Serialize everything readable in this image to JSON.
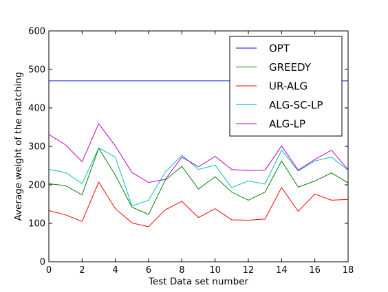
{
  "chart_data": {
    "type": "line",
    "title": "",
    "xlabel": "Test Data set number",
    "ylabel": "Average weight of the matching",
    "xlim": [
      0,
      18
    ],
    "ylim": [
      0,
      600
    ],
    "xticks": [
      "0",
      "2",
      "4",
      "6",
      "8",
      "10",
      "12",
      "14",
      "16",
      "18"
    ],
    "yticks": [
      "0",
      "100",
      "200",
      "300",
      "400",
      "500",
      "600"
    ],
    "grid": false,
    "legend_position": "top-right",
    "x": [
      0,
      1,
      2,
      3,
      4,
      5,
      6,
      7,
      8,
      9,
      10,
      11,
      12,
      13,
      14,
      15,
      16,
      17,
      18
    ],
    "series": [
      {
        "name": "OPT",
        "color": "#0000ff",
        "values": [
          470,
          470,
          470,
          470,
          470,
          470,
          470,
          470,
          470,
          470,
          470,
          470,
          470,
          470,
          470,
          470,
          470,
          470,
          470
        ]
      },
      {
        "name": "GREEDY",
        "color": "#008000",
        "values": [
          203,
          198,
          174,
          295,
          225,
          142,
          123,
          212,
          248,
          189,
          221,
          181,
          160,
          181,
          262,
          194,
          210,
          231,
          205
        ]
      },
      {
        "name": "UR-ALG",
        "color": "#ff0000",
        "values": [
          133,
          122,
          105,
          207,
          138,
          101,
          91,
          135,
          157,
          115,
          138,
          109,
          108,
          111,
          193,
          131,
          176,
          160,
          162
        ]
      },
      {
        "name": "ALG-SC-LP",
        "color": "#00bfbf",
        "values": [
          240,
          232,
          203,
          296,
          272,
          145,
          160,
          233,
          277,
          240,
          251,
          193,
          210,
          202,
          290,
          236,
          262,
          272,
          238
        ]
      },
      {
        "name": "ALG-LP",
        "color": "#bf00bf",
        "values": [
          331,
          304,
          260,
          359,
          301,
          232,
          206,
          214,
          272,
          247,
          274,
          240,
          237,
          238,
          301,
          238,
          266,
          290,
          239
        ]
      }
    ]
  }
}
